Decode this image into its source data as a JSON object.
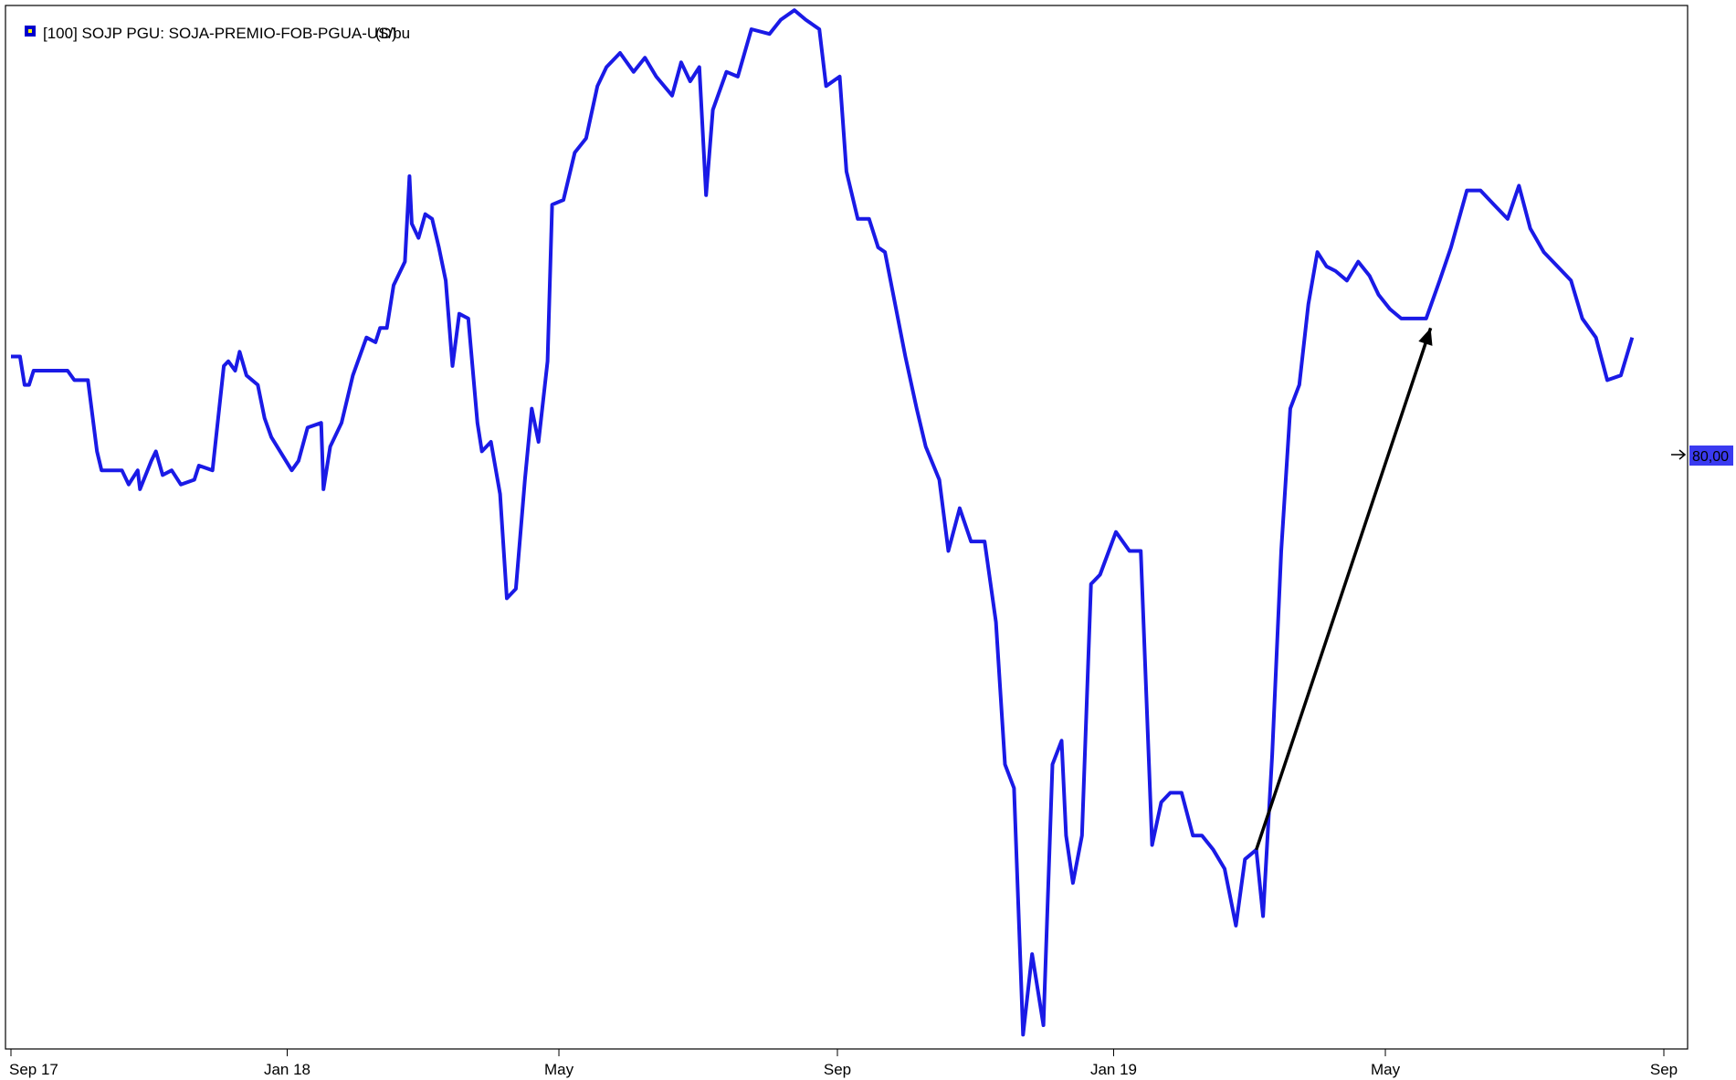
{
  "legend": {
    "series_label": "[100] SOJP PGU: SOJA-PREMIO-FOB-PGUA-US/bu",
    "period": "(D)"
  },
  "last_value": {
    "label": "80,00"
  },
  "colors": {
    "series": "#1a1ae6",
    "arrow": "#000000",
    "last_value_bg": "#3a3af0",
    "frame": "#000000",
    "legend_marker_outer": "#0000cc",
    "legend_marker_inner": "#ffff00"
  },
  "chart_data": {
    "type": "line",
    "grid": false,
    "legend_placement": "top-left",
    "x_ticks": [
      "Sep 17",
      "Jan 18",
      "May",
      "Sep",
      "Jan 19",
      "May",
      "Sep"
    ],
    "x_tick_dates": [
      "2017-09-01",
      "2018-01-01",
      "2018-05-01",
      "2018-09-01",
      "2019-01-01",
      "2019-05-01",
      "2019-09-01"
    ],
    "ylim": [
      -70,
      150
    ],
    "series": [
      {
        "name": "[100] SOJP PGU: SOJA-PREMIO-FOB-PGUA-US/bu",
        "points": [
          [
            "2017-09-01",
            76
          ],
          [
            "2017-09-05",
            76
          ],
          [
            "2017-09-07",
            70
          ],
          [
            "2017-09-09",
            70
          ],
          [
            "2017-09-11",
            73
          ],
          [
            "2017-09-26",
            73
          ],
          [
            "2017-09-29",
            71
          ],
          [
            "2017-10-05",
            71
          ],
          [
            "2017-10-09",
            56
          ],
          [
            "2017-10-11",
            52
          ],
          [
            "2017-10-20",
            52
          ],
          [
            "2017-10-23",
            49
          ],
          [
            "2017-10-27",
            52
          ],
          [
            "2017-10-28",
            48
          ],
          [
            "2017-11-02",
            54
          ],
          [
            "2017-11-04",
            56
          ],
          [
            "2017-11-07",
            51
          ],
          [
            "2017-11-11",
            52
          ],
          [
            "2017-11-15",
            49
          ],
          [
            "2017-11-21",
            50
          ],
          [
            "2017-11-23",
            53
          ],
          [
            "2017-11-29",
            52
          ],
          [
            "2017-12-04",
            74
          ],
          [
            "2017-12-06",
            75
          ],
          [
            "2017-12-09",
            73
          ],
          [
            "2017-12-11",
            77
          ],
          [
            "2017-12-14",
            72
          ],
          [
            "2017-12-19",
            70
          ],
          [
            "2017-12-22",
            63
          ],
          [
            "2017-12-25",
            59
          ],
          [
            "2018-01-03",
            52
          ],
          [
            "2018-01-06",
            54
          ],
          [
            "2018-01-10",
            61
          ],
          [
            "2018-01-16",
            62
          ],
          [
            "2018-01-17",
            48
          ],
          [
            "2018-01-20",
            57
          ],
          [
            "2018-01-25",
            62
          ],
          [
            "2018-01-30",
            72
          ],
          [
            "2018-02-05",
            80
          ],
          [
            "2018-02-09",
            79
          ],
          [
            "2018-02-11",
            82
          ],
          [
            "2018-02-14",
            82
          ],
          [
            "2018-02-17",
            91
          ],
          [
            "2018-02-22",
            96
          ],
          [
            "2018-02-24",
            114
          ],
          [
            "2018-02-25",
            104
          ],
          [
            "2018-02-28",
            101
          ],
          [
            "2018-03-03",
            106
          ],
          [
            "2018-03-06",
            105
          ],
          [
            "2018-03-09",
            99
          ],
          [
            "2018-03-12",
            92
          ],
          [
            "2018-03-15",
            74
          ],
          [
            "2018-03-18",
            85
          ],
          [
            "2018-03-22",
            84
          ],
          [
            "2018-03-26",
            62
          ],
          [
            "2018-03-28",
            56
          ],
          [
            "2018-04-01",
            58
          ],
          [
            "2018-04-05",
            47
          ],
          [
            "2018-04-08",
            25
          ],
          [
            "2018-04-12",
            27
          ],
          [
            "2018-04-16",
            50
          ],
          [
            "2018-04-19",
            65
          ],
          [
            "2018-04-22",
            58
          ],
          [
            "2018-04-26",
            75
          ],
          [
            "2018-04-28",
            108
          ],
          [
            "2018-05-03",
            109
          ],
          [
            "2018-05-08",
            119
          ],
          [
            "2018-05-13",
            122
          ],
          [
            "2018-05-18",
            133
          ],
          [
            "2018-05-22",
            137
          ],
          [
            "2018-05-28",
            140
          ],
          [
            "2018-06-03",
            136
          ],
          [
            "2018-06-08",
            139
          ],
          [
            "2018-06-13",
            135
          ],
          [
            "2018-06-20",
            131
          ],
          [
            "2018-06-24",
            138
          ],
          [
            "2018-06-28",
            134
          ],
          [
            "2018-07-02",
            137
          ],
          [
            "2018-07-05",
            110
          ],
          [
            "2018-07-08",
            128
          ],
          [
            "2018-07-14",
            136
          ],
          [
            "2018-07-19",
            135
          ],
          [
            "2018-07-25",
            145
          ],
          [
            "2018-08-02",
            144
          ],
          [
            "2018-08-07",
            147
          ],
          [
            "2018-08-13",
            149
          ],
          [
            "2018-08-18",
            147
          ],
          [
            "2018-08-24",
            145
          ],
          [
            "2018-08-27",
            133
          ],
          [
            "2018-09-02",
            135
          ],
          [
            "2018-09-05",
            115
          ],
          [
            "2018-09-10",
            105
          ],
          [
            "2018-09-15",
            105
          ],
          [
            "2018-09-19",
            99
          ],
          [
            "2018-09-22",
            98
          ],
          [
            "2018-10-01",
            76
          ],
          [
            "2018-10-06",
            65
          ],
          [
            "2018-10-10",
            57
          ],
          [
            "2018-10-16",
            50
          ],
          [
            "2018-10-20",
            35
          ],
          [
            "2018-10-25",
            44
          ],
          [
            "2018-10-30",
            37
          ],
          [
            "2018-11-05",
            37
          ],
          [
            "2018-11-10",
            20
          ],
          [
            "2018-11-14",
            -10
          ],
          [
            "2018-11-18",
            -15
          ],
          [
            "2018-11-22",
            -67
          ],
          [
            "2018-11-26",
            -50
          ],
          [
            "2018-12-01",
            -65
          ],
          [
            "2018-12-05",
            -10
          ],
          [
            "2018-12-09",
            -5
          ],
          [
            "2018-12-11",
            -25
          ],
          [
            "2018-12-14",
            -35
          ],
          [
            "2018-12-18",
            -25
          ],
          [
            "2018-12-22",
            28
          ],
          [
            "2018-12-26",
            30
          ],
          [
            "2019-01-02",
            39
          ],
          [
            "2019-01-08",
            35
          ],
          [
            "2019-01-13",
            35
          ],
          [
            "2019-01-18",
            -27
          ],
          [
            "2019-01-22",
            -18
          ],
          [
            "2019-01-26",
            -16
          ],
          [
            "2019-01-31",
            -16
          ],
          [
            "2019-02-05",
            -25
          ],
          [
            "2019-02-09",
            -25
          ],
          [
            "2019-02-14",
            -28
          ],
          [
            "2019-02-19",
            -32
          ],
          [
            "2019-02-24",
            -44
          ],
          [
            "2019-02-28",
            -30
          ],
          [
            "2019-03-05",
            -28
          ],
          [
            "2019-03-08",
            -42
          ],
          [
            "2019-03-12",
            -8
          ],
          [
            "2019-03-16",
            35
          ],
          [
            "2019-03-20",
            65
          ],
          [
            "2019-03-24",
            70
          ],
          [
            "2019-03-28",
            87
          ],
          [
            "2019-04-01",
            98
          ],
          [
            "2019-04-05",
            95
          ],
          [
            "2019-04-09",
            94
          ],
          [
            "2019-04-14",
            92
          ],
          [
            "2019-04-19",
            96
          ],
          [
            "2019-04-24",
            93
          ],
          [
            "2019-04-28",
            89
          ],
          [
            "2019-05-03",
            86
          ],
          [
            "2019-05-08",
            84
          ],
          [
            "2019-05-13",
            84
          ],
          [
            "2019-05-19",
            84
          ],
          [
            "2019-05-25",
            92
          ],
          [
            "2019-05-30",
            99
          ],
          [
            "2019-06-06",
            111
          ],
          [
            "2019-06-12",
            111
          ],
          [
            "2019-06-18",
            108
          ],
          [
            "2019-06-24",
            105
          ],
          [
            "2019-06-29",
            112
          ],
          [
            "2019-07-04",
            103
          ],
          [
            "2019-07-10",
            98
          ],
          [
            "2019-07-16",
            95
          ],
          [
            "2019-07-22",
            92
          ],
          [
            "2019-07-27",
            84
          ],
          [
            "2019-08-02",
            80
          ],
          [
            "2019-08-07",
            71
          ],
          [
            "2019-08-13",
            72
          ],
          [
            "2019-08-18",
            80
          ]
        ]
      }
    ],
    "annotations": [
      {
        "type": "arrow",
        "from": [
          "2019-03-05",
          -28
        ],
        "to": [
          "2019-05-21",
          82
        ]
      }
    ]
  }
}
